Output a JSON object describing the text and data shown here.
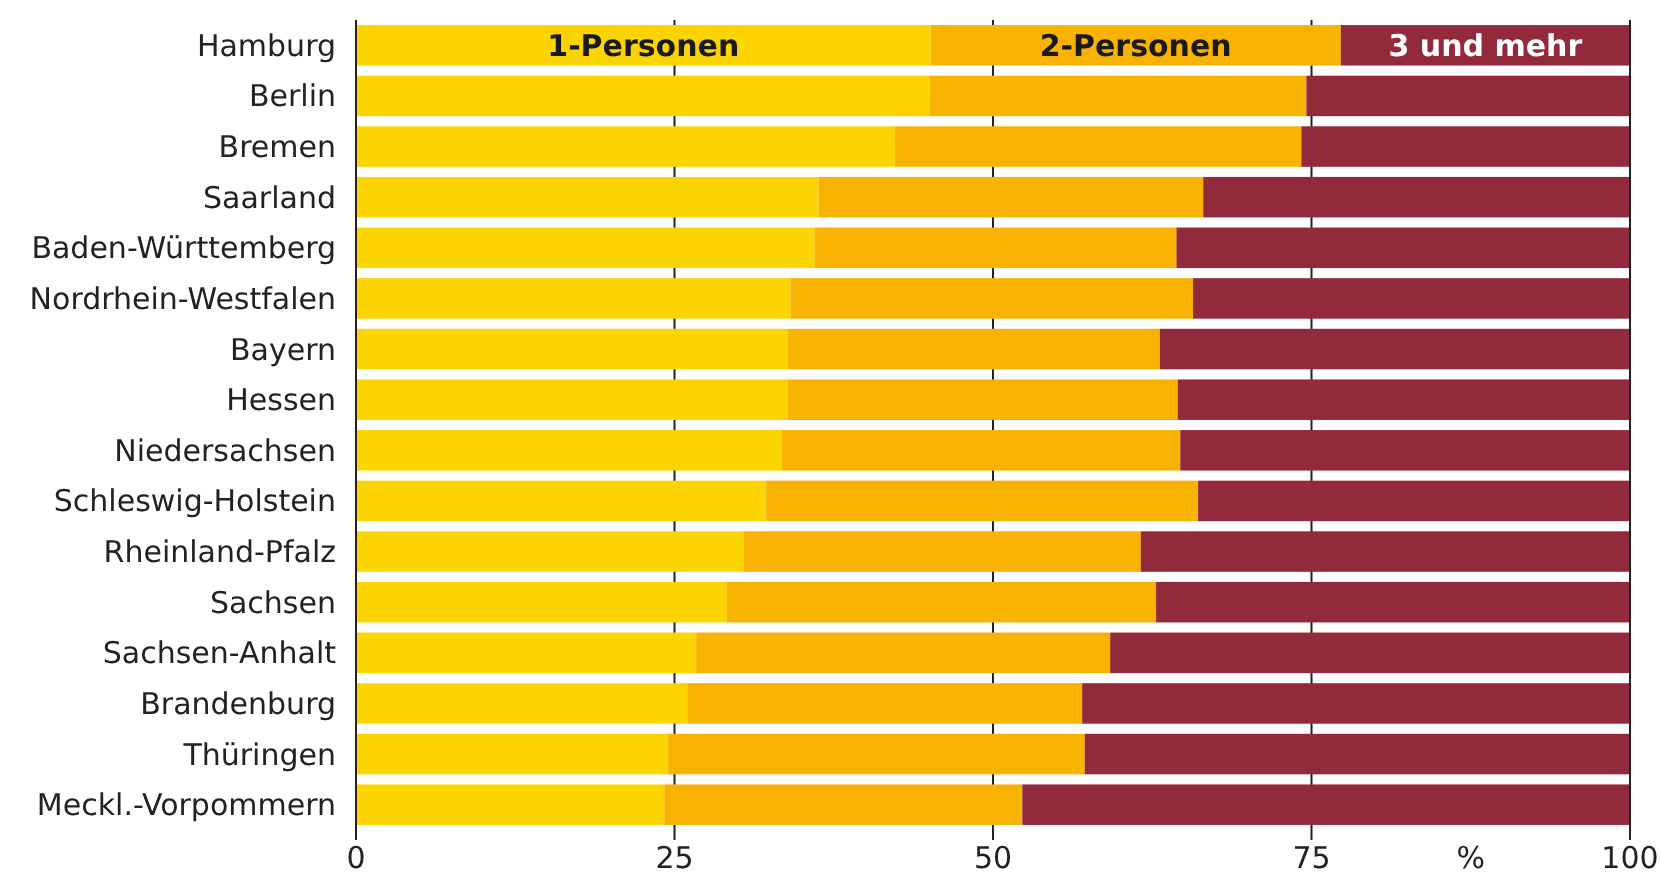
{
  "chart_data": {
    "type": "bar",
    "orientation": "horizontal",
    "stacked": true,
    "xlabel": "%",
    "categories": [
      "Hamburg",
      "Berlin",
      "Bremen",
      "Saarland",
      "Baden-Württemberg",
      "Nordrhein-Westfalen",
      "Bayern",
      "Hessen",
      "Niedersachsen",
      "Schleswig-Holstein",
      "Rheinland-Pfalz",
      "Sachsen",
      "Sachsen-Anhalt",
      "Brandenburg",
      "Thüringen",
      "Meckl.-Vorpommern"
    ],
    "series": [
      {
        "name": "1-Personen",
        "color": "#fcd500",
        "values": [
          45.1,
          45.0,
          42.3,
          36.3,
          36.0,
          34.1,
          33.9,
          33.9,
          33.4,
          32.2,
          30.4,
          29.1,
          26.7,
          26.0,
          24.5,
          24.2
        ]
      },
      {
        "name": "2-Personen",
        "color": "#f8b200",
        "values": [
          32.2,
          29.6,
          31.9,
          30.2,
          28.4,
          31.6,
          29.2,
          30.6,
          31.3,
          33.9,
          31.2,
          33.7,
          32.5,
          31.0,
          32.7,
          28.1
        ]
      },
      {
        "name": "3 und mehr",
        "color": "#922a3c",
        "values": [
          22.7,
          25.4,
          25.8,
          33.5,
          35.6,
          34.3,
          36.9,
          35.5,
          35.3,
          33.9,
          38.4,
          37.2,
          40.8,
          43.0,
          42.8,
          47.7
        ]
      }
    ],
    "xlim": [
      0,
      100
    ],
    "xticks": [
      0,
      25,
      50,
      75,
      100
    ],
    "grid": "x"
  }
}
